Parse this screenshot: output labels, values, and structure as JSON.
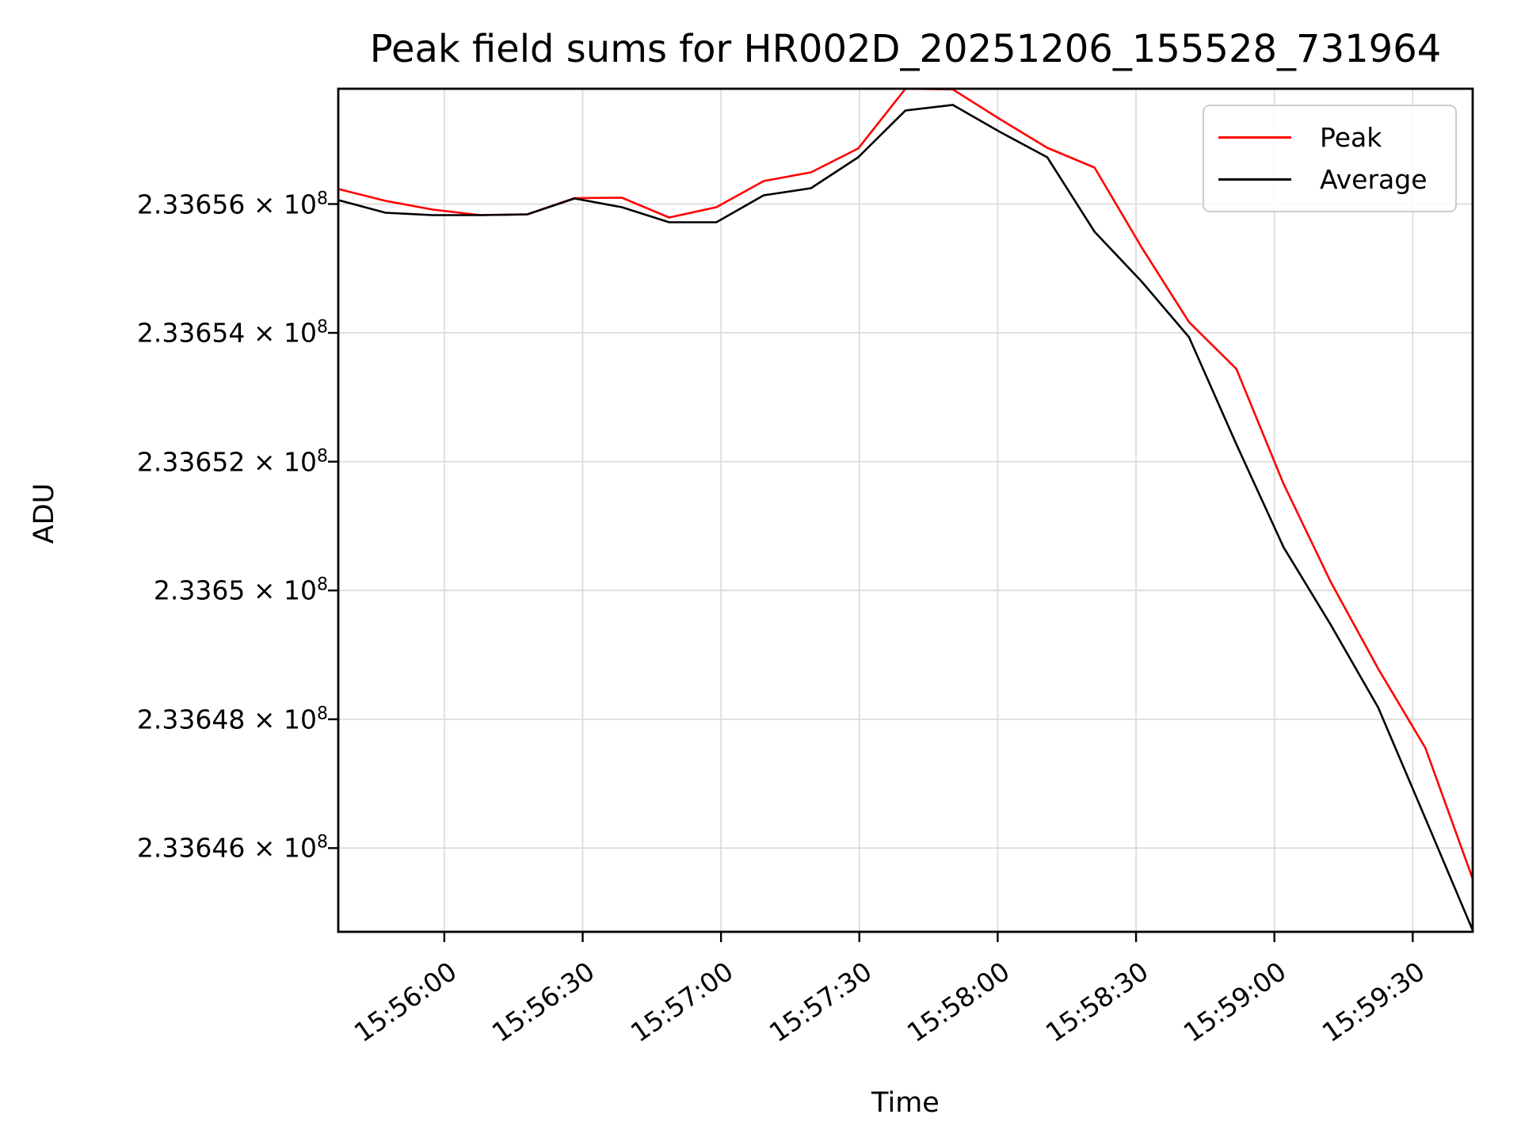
{
  "figure": {
    "title": "Peak field sums for HR002D_20251206_155528_731964",
    "xlabel": "Time",
    "ylabel": "ADU",
    "background": "#ffffff"
  },
  "colors": {
    "peak": "#ff0000",
    "average": "#000000",
    "grid": "#dcdcdc",
    "spine": "#000000",
    "legend_border": "#cccccc"
  },
  "legend": {
    "position": "upper right",
    "items": [
      {
        "label": "Peak",
        "color": "#ff0000"
      },
      {
        "label": "Average",
        "color": "#000000"
      }
    ]
  },
  "chart_data": {
    "type": "line",
    "title": "Peak field sums for HR002D_20251206_155528_731964",
    "xlabel": "Time",
    "ylabel": "ADU",
    "grid": true,
    "legend_position": "upper right",
    "ylim": [
      233644700,
      233657790
    ],
    "x_span_seconds": 246,
    "x": [
      "15:55:38",
      "15:55:48",
      "15:55:58",
      "15:56:08",
      "15:56:18",
      "15:56:28",
      "15:56:38",
      "15:56:48",
      "15:56:58",
      "15:57:08",
      "15:57:18",
      "15:57:28",
      "15:57:38",
      "15:57:48",
      "15:57:58",
      "15:58:08",
      "15:58:18",
      "15:58:28",
      "15:58:38",
      "15:58:48",
      "15:58:58",
      "15:59:08",
      "15:59:18",
      "15:59:28",
      "15:59:38"
    ],
    "series": [
      {
        "name": "Peak",
        "color": "#ff0000",
        "values": [
          233656234,
          233656049,
          233655914,
          233655828,
          233655840,
          233656092,
          233656098,
          233655791,
          233655951,
          233656357,
          233656492,
          233656862,
          233657790,
          233657780,
          233657317,
          233656874,
          233656566,
          233655323,
          233654166,
          233653440,
          233651655,
          233650128,
          233648786,
          233647555,
          233645524
        ]
      },
      {
        "name": "Average",
        "color": "#000000",
        "values": [
          233656062,
          233655865,
          233655828,
          233655828,
          233655840,
          233656086,
          233655951,
          233655717,
          233655717,
          233656135,
          233656246,
          233656726,
          233657453,
          233657539,
          233657120,
          233656726,
          233655569,
          233654794,
          233653932,
          233652270,
          233650670,
          233649463,
          233648183,
          233646460,
          233644724
        ]
      }
    ],
    "yticks": [
      {
        "value": 233656000,
        "label": "2.33656 × 10^8"
      },
      {
        "value": 233654000,
        "label": "2.33654 × 10^8"
      },
      {
        "value": 233652000,
        "label": "2.33652 × 10^8"
      },
      {
        "value": 233650000,
        "label": "2.3365 × 10^8"
      },
      {
        "value": 233648000,
        "label": "2.33648 × 10^8"
      },
      {
        "value": 233646000,
        "label": "2.33646 × 10^8"
      }
    ],
    "xticks": [
      {
        "label": "15:56:00",
        "offset_s": 23
      },
      {
        "label": "15:56:30",
        "offset_s": 53
      },
      {
        "label": "15:57:00",
        "offset_s": 83
      },
      {
        "label": "15:57:30",
        "offset_s": 113
      },
      {
        "label": "15:58:00",
        "offset_s": 143
      },
      {
        "label": "15:58:30",
        "offset_s": 173
      },
      {
        "label": "15:59:00",
        "offset_s": 203
      },
      {
        "label": "15:59:30",
        "offset_s": 233
      }
    ]
  }
}
